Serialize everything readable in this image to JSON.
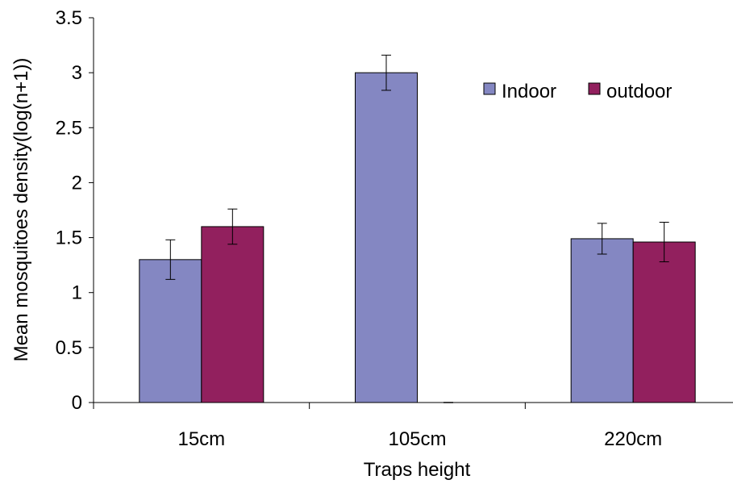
{
  "chart_data": {
    "type": "bar",
    "title": "",
    "xlabel": "Traps height",
    "ylabel": "Mean mosquitoes density(log(n+1))",
    "categories": [
      "15cm",
      "105cm",
      "220cm"
    ],
    "ylim": [
      0,
      3.5
    ],
    "yticks": [
      "0",
      "0.5",
      "1",
      "1.5",
      "2",
      "2.5",
      "3",
      "3.5"
    ],
    "grid": false,
    "legend_position": "top-right",
    "series": [
      {
        "name": "Indoor",
        "color": "#8487C2",
        "values": [
          1.3,
          3.0,
          1.49
        ],
        "error": [
          0.18,
          0.16,
          0.14
        ]
      },
      {
        "name": "outdoor",
        "color": "#92205E",
        "values": [
          1.6,
          0,
          1.46
        ],
        "error": [
          0.16,
          0,
          0.18
        ]
      }
    ]
  }
}
